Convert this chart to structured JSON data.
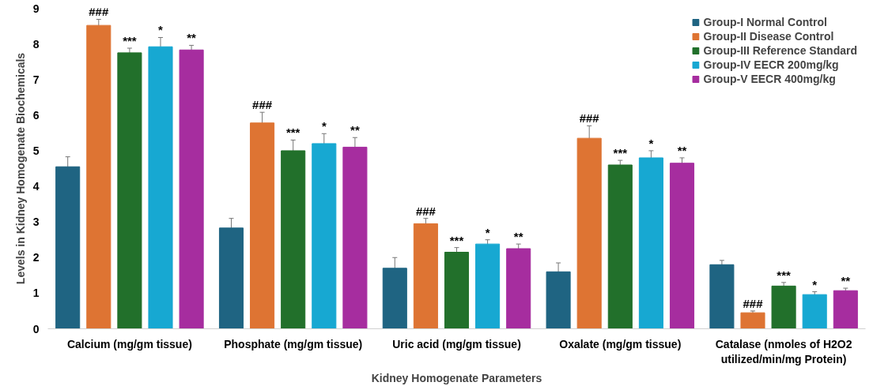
{
  "chart_data": {
    "type": "bar",
    "xlabel": "Kidney Homogenate Parameters",
    "ylabel": "Levels in Kidney Homogenate Biochemicals",
    "categories": [
      "Calcium (mg/gm tissue)",
      "Phosphate (mg/gm tissue)",
      "Uric acid (mg/gm tissue)",
      "Oxalate (mg/gm tissue)",
      "Catalase (nmoles of H2O2\nutilized/min/mg Protein)"
    ],
    "series": [
      {
        "name": "Group-I Normal Control",
        "color": "#1f6482",
        "values": [
          4.55,
          2.83,
          1.7,
          1.6,
          1.8
        ],
        "errors": [
          0.28,
          0.27,
          0.3,
          0.25,
          0.12
        ]
      },
      {
        "name": "Group-II Disease Control",
        "color": "#de7433",
        "values": [
          8.52,
          5.78,
          2.95,
          5.35,
          0.45
        ],
        "errors": [
          0.17,
          0.3,
          0.15,
          0.35,
          0.05
        ],
        "value_labels": [
          "###",
          "###",
          "###",
          "###",
          "###"
        ]
      },
      {
        "name": "Group-III Reference Standard",
        "color": "#22702b",
        "values": [
          7.75,
          5.0,
          2.15,
          4.6,
          1.2
        ],
        "errors": [
          0.13,
          0.3,
          0.13,
          0.13,
          0.1
        ],
        "value_labels": [
          "***",
          "***",
          "***",
          "***",
          "***"
        ]
      },
      {
        "name": "Group-IV EECR 200mg/kg",
        "color": "#17a8d2",
        "values": [
          7.92,
          5.2,
          2.38,
          4.8,
          0.96
        ],
        "errors": [
          0.26,
          0.28,
          0.12,
          0.2,
          0.08
        ],
        "value_labels": [
          "*",
          "*",
          "*",
          "*",
          "*"
        ]
      },
      {
        "name": "Group-V EECR 400mg/kg",
        "color": "#a62d9f",
        "values": [
          7.83,
          5.1,
          2.25,
          4.65,
          1.07
        ],
        "errors": [
          0.13,
          0.27,
          0.13,
          0.15,
          0.07
        ],
        "value_labels": [
          "**",
          "**",
          "**",
          "**",
          "**"
        ]
      }
    ],
    "ylim": [
      0,
      9
    ],
    "yticks": [
      0,
      1,
      2,
      3,
      4,
      5,
      6,
      7,
      8,
      9
    ],
    "grid": false,
    "legend": "top right"
  }
}
